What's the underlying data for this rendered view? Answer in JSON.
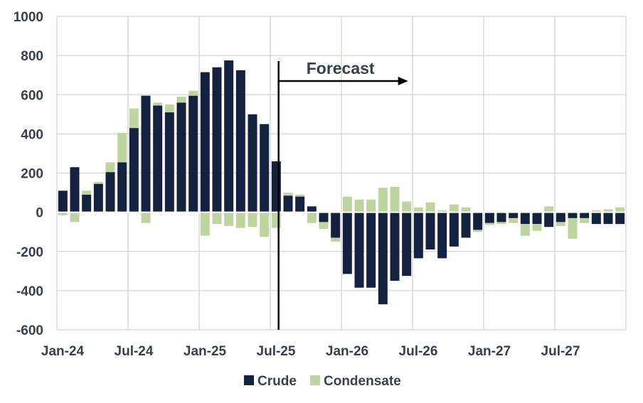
{
  "chart_data": {
    "type": "bar",
    "stacked": true,
    "title": "",
    "xlabel": "",
    "ylabel": "",
    "ylim": [
      -600,
      1000
    ],
    "yticks": [
      -600,
      -400,
      -200,
      0,
      200,
      400,
      600,
      800,
      1000
    ],
    "grid": true,
    "legend_position": "bottom",
    "x_tick_labels": [
      {
        "index": 0,
        "label": "Jan-24"
      },
      {
        "index": 6,
        "label": "Jul-24"
      },
      {
        "index": 12,
        "label": "Jan-25"
      },
      {
        "index": 18,
        "label": "Jul-25"
      },
      {
        "index": 24,
        "label": "Jan-26"
      },
      {
        "index": 30,
        "label": "Jul-26"
      },
      {
        "index": 36,
        "label": "Jan-27"
      },
      {
        "index": 42,
        "label": "Jul-27"
      }
    ],
    "series": [
      {
        "name": "Crude",
        "color": "#13233f",
        "values": [
          110,
          230,
          90,
          145,
          205,
          255,
          430,
          595,
          545,
          510,
          560,
          595,
          715,
          740,
          775,
          725,
          500,
          450,
          260,
          85,
          80,
          30,
          -50,
          -130,
          -315,
          -385,
          -385,
          -470,
          -350,
          -325,
          -235,
          -190,
          -235,
          -175,
          -130,
          -90,
          -55,
          -50,
          -30,
          -60,
          -60,
          -75,
          -50,
          -30,
          -30,
          -60,
          -60,
          -60
        ]
      },
      {
        "name": "Condensate",
        "color": "#bfd5a0",
        "values": [
          -15,
          -50,
          20,
          10,
          50,
          150,
          100,
          -55,
          15,
          40,
          30,
          25,
          -120,
          -60,
          -70,
          -80,
          -75,
          -125,
          -80,
          15,
          10,
          -55,
          -35,
          -20,
          80,
          65,
          65,
          125,
          130,
          55,
          25,
          50,
          10,
          40,
          25,
          -10,
          -10,
          -10,
          -25,
          -60,
          -35,
          30,
          -20,
          -105,
          -25,
          10,
          15,
          25
        ]
      }
    ],
    "annotations": [
      {
        "text": "Forecast",
        "type": "vertical-line-with-arrow",
        "at_index": 18.7,
        "arrow_to_index": 29.5
      }
    ]
  },
  "legend": {
    "items": [
      {
        "label": "Crude",
        "color": "#13233f"
      },
      {
        "label": "Condensate",
        "color": "#bfd5a0"
      }
    ]
  }
}
